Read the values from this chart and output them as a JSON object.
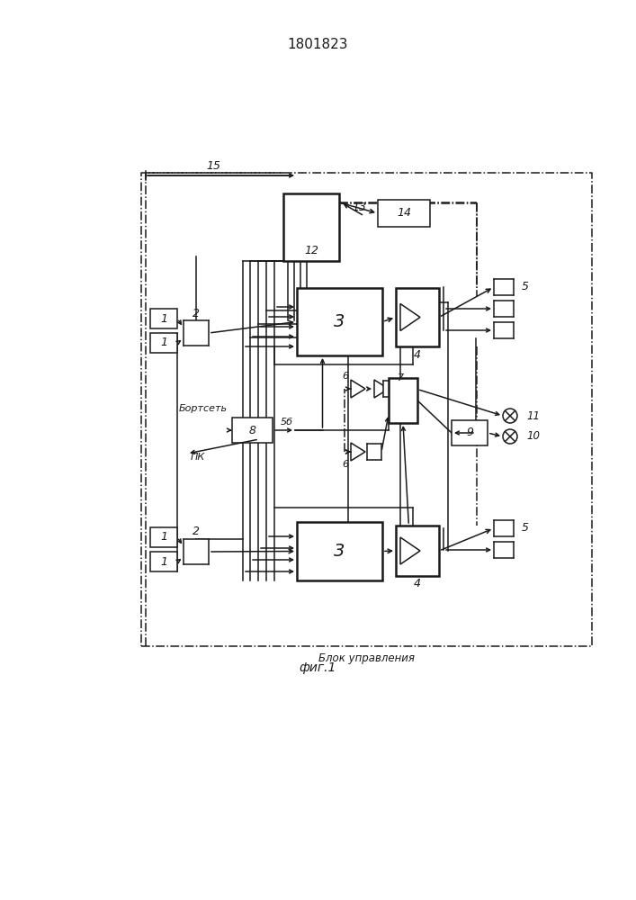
{
  "title": "1801823",
  "fig_label": "фиг.1",
  "label_bortset": "Бортсеть",
  "label_pk": "ПК",
  "label_bu": "Блок управления",
  "bg": "#ffffff",
  "lc": "#1a1a1a",
  "lw": 1.1,
  "lw2": 1.8
}
